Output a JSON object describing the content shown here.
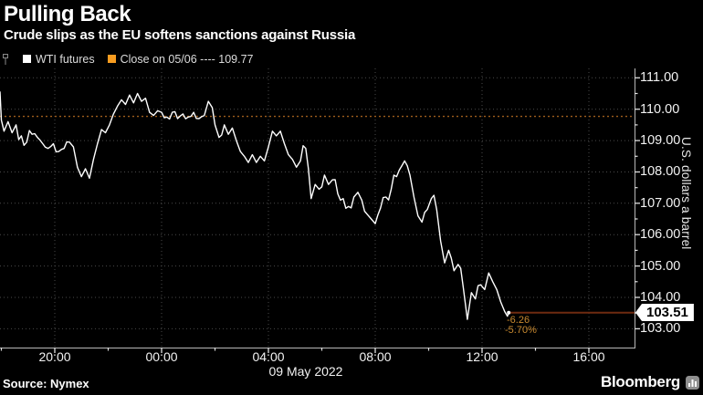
{
  "header": {
    "title": "Pulling Back",
    "subtitle": "Crude slips as the EU softens sanctions against Russia"
  },
  "legend": {
    "series_label": "WTI futures",
    "close_label": "Close on 05/06 ---- 109.77"
  },
  "axis": {
    "unit": "U.S. dollars a barrel",
    "date": "09 May 2022"
  },
  "annotations": {
    "change": "-6.26",
    "pct": "-5.70%"
  },
  "last_price": {
    "label": "103.51"
  },
  "footer": {
    "source": "Source: Nymex",
    "brand": "Bloomberg"
  },
  "colors": {
    "background": "#000000",
    "series": "#ffffff",
    "close_dashed": "#a05e1c",
    "last_line": "#6e2a10",
    "annotation": "#c98a30",
    "swatch_close": "#f79c20",
    "grid": "#4a4a4a",
    "axis_line": "#b8b8b8",
    "tick": "#e0e0e0"
  },
  "chart_data": {
    "type": "line",
    "title": "Pulling Back",
    "xlabel": "09 May 2022",
    "ylabel": "U.S. dollars a barrel",
    "legend_position": "top-left",
    "grid": "dotted",
    "xlim": [
      -6.05,
      17.71
    ],
    "ylim": [
      102.4,
      111.3
    ],
    "x_ticks": [
      {
        "t": -4,
        "label": "20:00"
      },
      {
        "t": 0,
        "label": "00:00"
      },
      {
        "t": 4,
        "label": "04:00"
      },
      {
        "t": 8,
        "label": "08:00"
      },
      {
        "t": 12,
        "label": "12:00"
      },
      {
        "t": 16,
        "label": "16:00"
      }
    ],
    "x_minor_ticks": [
      -6,
      -2,
      2,
      6,
      10,
      14
    ],
    "y_ticks": [
      103,
      104,
      105,
      106,
      107,
      108,
      109,
      110,
      111
    ],
    "y_tick_labels": [
      "103.00",
      "104.00",
      "105.00",
      "106.00",
      "107.00",
      "108.00",
      "109.00",
      "110.00",
      "111.00"
    ],
    "close_line": {
      "label": "Close on 05/06",
      "value": 109.77
    },
    "last": 103.51,
    "change": -6.26,
    "pct_change": -5.7,
    "series": [
      {
        "name": "WTI futures",
        "points": [
          [
            -6.05,
            110.55
          ],
          [
            -6.0,
            109.65
          ],
          [
            -5.9,
            109.3
          ],
          [
            -5.75,
            109.6
          ],
          [
            -5.6,
            109.25
          ],
          [
            -5.45,
            109.5
          ],
          [
            -5.25,
            109.15
          ],
          [
            -5.05,
            108.95
          ],
          [
            -4.85,
            109.2
          ],
          [
            -4.65,
            109.1
          ],
          [
            -4.45,
            108.9
          ],
          [
            -4.25,
            108.75
          ],
          [
            -4.05,
            108.9
          ],
          [
            -3.85,
            108.65
          ],
          [
            -3.65,
            108.75
          ],
          [
            -3.45,
            108.95
          ],
          [
            -3.3,
            108.8
          ],
          [
            -3.15,
            108.15
          ],
          [
            -3.0,
            107.85
          ],
          [
            -2.85,
            108.1
          ],
          [
            -2.7,
            107.8
          ],
          [
            -2.55,
            108.4
          ],
          [
            -2.4,
            108.9
          ],
          [
            -2.25,
            109.35
          ],
          [
            -2.1,
            109.25
          ],
          [
            -1.95,
            109.5
          ],
          [
            -1.8,
            109.85
          ],
          [
            -1.65,
            110.1
          ],
          [
            -1.5,
            110.3
          ],
          [
            -1.35,
            110.15
          ],
          [
            -1.2,
            110.45
          ],
          [
            -1.05,
            110.2
          ],
          [
            -0.9,
            110.5
          ],
          [
            -0.75,
            110.25
          ],
          [
            -0.6,
            110.35
          ],
          [
            -0.45,
            109.9
          ],
          [
            -0.3,
            109.8
          ],
          [
            -0.15,
            109.95
          ],
          [
            0.0,
            109.9
          ],
          [
            0.2,
            109.75
          ],
          [
            0.4,
            109.9
          ],
          [
            0.6,
            109.7
          ],
          [
            0.8,
            109.85
          ],
          [
            1.0,
            109.75
          ],
          [
            1.2,
            109.9
          ],
          [
            1.4,
            109.7
          ],
          [
            1.6,
            109.8
          ],
          [
            1.75,
            110.25
          ],
          [
            1.9,
            110.05
          ],
          [
            2.0,
            109.5
          ],
          [
            2.15,
            109.1
          ],
          [
            2.35,
            109.5
          ],
          [
            2.5,
            109.2
          ],
          [
            2.65,
            109.4
          ],
          [
            2.8,
            109.0
          ],
          [
            2.95,
            108.65
          ],
          [
            3.1,
            108.5
          ],
          [
            3.25,
            108.3
          ],
          [
            3.4,
            108.55
          ],
          [
            3.55,
            108.3
          ],
          [
            3.7,
            108.5
          ],
          [
            3.85,
            108.35
          ],
          [
            4.0,
            108.8
          ],
          [
            4.15,
            109.3
          ],
          [
            4.3,
            109.15
          ],
          [
            4.45,
            109.3
          ],
          [
            4.6,
            108.9
          ],
          [
            4.75,
            108.55
          ],
          [
            4.9,
            108.4
          ],
          [
            5.05,
            108.15
          ],
          [
            5.2,
            108.35
          ],
          [
            5.4,
            108.75
          ],
          [
            5.5,
            108.1
          ],
          [
            5.6,
            107.15
          ],
          [
            5.75,
            107.6
          ],
          [
            5.9,
            107.45
          ],
          [
            6.1,
            107.9
          ],
          [
            6.25,
            107.6
          ],
          [
            6.4,
            107.75
          ],
          [
            6.6,
            107.3
          ],
          [
            6.8,
            107.15
          ],
          [
            7.0,
            106.9
          ],
          [
            7.2,
            107.2
          ],
          [
            7.35,
            107.35
          ],
          [
            7.5,
            107.1
          ],
          [
            7.7,
            106.65
          ],
          [
            7.85,
            106.5
          ],
          [
            8.0,
            106.35
          ],
          [
            8.2,
            106.85
          ],
          [
            8.4,
            107.2
          ],
          [
            8.6,
            107.45
          ],
          [
            8.8,
            107.85
          ],
          [
            9.0,
            108.2
          ],
          [
            9.1,
            108.35
          ],
          [
            9.3,
            107.9
          ],
          [
            9.45,
            107.2
          ],
          [
            9.6,
            106.6
          ],
          [
            9.75,
            106.4
          ],
          [
            9.95,
            106.8
          ],
          [
            10.1,
            107.15
          ],
          [
            10.3,
            106.8
          ],
          [
            10.45,
            105.8
          ],
          [
            10.6,
            105.1
          ],
          [
            10.75,
            105.5
          ],
          [
            10.95,
            104.85
          ],
          [
            11.1,
            105.05
          ],
          [
            11.3,
            104.3
          ],
          [
            11.45,
            103.3
          ],
          [
            11.6,
            104.15
          ],
          [
            11.75,
            103.95
          ],
          [
            11.95,
            104.4
          ],
          [
            12.1,
            104.25
          ],
          [
            12.25,
            104.78
          ],
          [
            12.4,
            104.5
          ],
          [
            12.55,
            104.25
          ],
          [
            12.7,
            103.85
          ],
          [
            12.85,
            103.55
          ],
          [
            12.95,
            103.4
          ],
          [
            13.0,
            103.51
          ]
        ]
      }
    ]
  }
}
